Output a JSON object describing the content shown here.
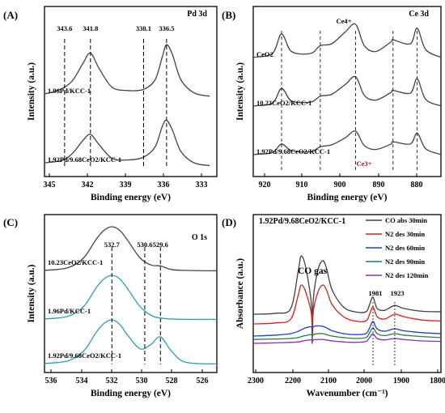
{
  "chart_data": [
    {
      "type": "line",
      "panel_label": "(A)",
      "title": "Pd 3d",
      "xlabel": "Binding energy (eV)",
      "ylabel": "Intensity (a.u.)",
      "xlim": [
        345,
        333
      ],
      "xticks": [
        "345",
        "342",
        "339",
        "336",
        "333"
      ],
      "peak_labels": [
        "343.6",
        "341.8",
        "338.1",
        "336.5"
      ],
      "series": [
        {
          "name": "1.96Pd/KCC-1",
          "x": [
            345,
            344.2,
            343.6,
            343,
            342.3,
            341.8,
            341.2,
            340.3,
            339.2,
            338.1,
            337.3,
            336.8,
            336.5,
            336.1,
            335.5,
            334.6,
            333.5
          ],
          "y": [
            0.1,
            0.15,
            0.22,
            0.35,
            0.65,
            0.82,
            0.55,
            0.22,
            0.16,
            0.18,
            0.35,
            0.75,
            0.97,
            0.8,
            0.35,
            0.12,
            0.06
          ]
        },
        {
          "name": "1.92Pd/9.68CeO2/KCC-1",
          "x": [
            345,
            344.2,
            343.6,
            343,
            342.3,
            341.8,
            341.2,
            340.3,
            339.2,
            338.1,
            337.3,
            336.8,
            336.5,
            336.1,
            335.5,
            334.6,
            333.5
          ],
          "y": [
            0.1,
            0.12,
            0.16,
            0.28,
            0.5,
            0.6,
            0.42,
            0.18,
            0.15,
            0.2,
            0.38,
            0.74,
            0.85,
            0.68,
            0.3,
            0.1,
            0.05
          ]
        }
      ]
    },
    {
      "type": "line",
      "panel_label": "(B)",
      "title": "Ce 3d",
      "xlabel": "Binding energy (eV)",
      "ylabel": "Intensity (a.u.)",
      "xlim": [
        925,
        876
      ],
      "xticks": [
        "920",
        "910",
        "900",
        "890",
        "880"
      ],
      "annotations": [
        "Ce4+",
        "Ce3+"
      ],
      "series": [
        {
          "name": "CeO2",
          "x": [
            925,
            920,
            917.6,
            915,
            910,
            907.5,
            904.5,
            901,
            898.3,
            896,
            893,
            889,
            888.5,
            884,
            882.2,
            880,
            876
          ],
          "y": [
            0.15,
            0.25,
            0.75,
            0.3,
            0.25,
            0.45,
            0.5,
            0.8,
            1.0,
            0.45,
            0.3,
            0.55,
            0.6,
            0.5,
            0.9,
            0.35,
            0.15
          ]
        },
        {
          "name": "10.23CeO2/KCC-1",
          "x": [
            925,
            920,
            917.6,
            915,
            910,
            907.5,
            904.5,
            901,
            898.3,
            896,
            893,
            889,
            888.5,
            884,
            882.2,
            880,
            876
          ],
          "y": [
            0.15,
            0.22,
            0.6,
            0.28,
            0.25,
            0.4,
            0.45,
            0.7,
            0.9,
            0.42,
            0.3,
            0.5,
            0.55,
            0.48,
            0.85,
            0.32,
            0.15
          ]
        },
        {
          "name": "1.92Pd/9.68CeO2/KCC-1",
          "x": [
            925,
            920,
            917.6,
            915,
            910,
            907.5,
            904.5,
            901,
            898.3,
            896,
            893,
            889,
            888.5,
            884,
            882.2,
            880,
            876
          ],
          "y": [
            0.15,
            0.2,
            0.42,
            0.25,
            0.22,
            0.35,
            0.4,
            0.58,
            0.75,
            0.38,
            0.28,
            0.42,
            0.48,
            0.42,
            0.7,
            0.3,
            0.15
          ]
        }
      ]
    },
    {
      "type": "line",
      "panel_label": "(C)",
      "title": "O 1s",
      "xlabel": "Binding energy (eV)",
      "ylabel": "Intensity (a.u.)",
      "xlim": [
        537,
        526
      ],
      "xticks": [
        "536",
        "534",
        "532",
        "530",
        "528",
        "526"
      ],
      "peak_labels": [
        "532.7",
        "530.6",
        "529.6"
      ],
      "series": [
        {
          "name": "10.23CeO2/KCC-1",
          "x": [
            537,
            535.5,
            534.5,
            533.7,
            533.2,
            532.7,
            532.2,
            531.7,
            530.9,
            530.2,
            529.6,
            528.9,
            528,
            526
          ],
          "y": [
            0.02,
            0.08,
            0.3,
            0.72,
            0.92,
            1.0,
            0.92,
            0.7,
            0.3,
            0.14,
            0.12,
            0.04,
            0.02,
            0.01
          ]
        },
        {
          "name": "1.96Pd/KCC-1",
          "x": [
            537,
            535.5,
            534.5,
            533.7,
            533.2,
            532.7,
            532.2,
            531.7,
            530.9,
            530.2,
            529.6,
            528.9,
            528,
            526
          ],
          "y": [
            0.02,
            0.08,
            0.3,
            0.72,
            0.92,
            1.0,
            0.92,
            0.7,
            0.3,
            0.1,
            0.04,
            0.02,
            0.01,
            0.01
          ]
        },
        {
          "name": "1.92Pd/9.68CeO2/KCC-1",
          "x": [
            537,
            535.5,
            534.5,
            533.7,
            533.2,
            532.7,
            532.2,
            531.7,
            530.9,
            530.2,
            529.6,
            528.9,
            528,
            526
          ],
          "y": [
            0.02,
            0.08,
            0.3,
            0.72,
            0.92,
            1.0,
            0.9,
            0.66,
            0.35,
            0.45,
            0.62,
            0.3,
            0.05,
            0.01
          ]
        }
      ]
    },
    {
      "type": "line",
      "panel_label": "(D)",
      "title": "1.92Pd/9.68CeO2/KCC-1",
      "xlabel": "Wavenumber (cm⁻¹)",
      "ylabel": "Absorbance (a.u.)",
      "xlim": [
        2300,
        1800
      ],
      "xticks": [
        "2300",
        "2200",
        "2100",
        "2000",
        "1900",
        "1800"
      ],
      "annotations": [
        "CO gas",
        "1981",
        "1923"
      ],
      "series": [
        {
          "name": "CO abs 30min",
          "color": "#404040",
          "x": [
            2300,
            2240,
            2200,
            2180,
            2172,
            2160,
            2145,
            2143,
            2140,
            2128,
            2115,
            2105,
            2090,
            2060,
            2030,
            2000,
            1990,
            1981,
            1970,
            1950,
            1923,
            1900,
            1850,
            1800
          ],
          "y": [
            1.0,
            1.02,
            1.12,
            1.9,
            2.2,
            1.95,
            1.2,
            0.4,
            1.3,
            1.9,
            2.1,
            1.95,
            1.5,
            1.15,
            1.05,
            1.05,
            1.2,
            1.35,
            1.12,
            1.08,
            1.18,
            1.12,
            1.06,
            1.05
          ]
        },
        {
          "name": "N2 des 30min",
          "color": "#d62020",
          "x": [
            2300,
            2240,
            2200,
            2180,
            2172,
            2160,
            2145,
            2143,
            2140,
            2128,
            2115,
            2105,
            2090,
            2060,
            2030,
            2000,
            1990,
            1981,
            1970,
            1950,
            1923,
            1900,
            1850,
            1800
          ],
          "y": [
            0.8,
            0.82,
            0.9,
            1.4,
            1.6,
            1.45,
            1.0,
            0.45,
            1.05,
            1.45,
            1.6,
            1.5,
            1.2,
            0.95,
            0.86,
            0.86,
            1.0,
            1.15,
            0.95,
            0.9,
            1.0,
            0.95,
            0.88,
            0.86
          ]
        },
        {
          "name": "N2 des 60min",
          "color": "#2040c0",
          "x": [
            2300,
            2240,
            2200,
            2180,
            2172,
            2160,
            2145,
            2143,
            2140,
            2128,
            2115,
            2105,
            2090,
            2060,
            2030,
            2000,
            1990,
            1981,
            1970,
            1950,
            1923,
            1900,
            1850,
            1800
          ],
          "y": [
            0.55,
            0.57,
            0.6,
            0.65,
            0.68,
            0.72,
            0.74,
            0.62,
            0.74,
            0.76,
            0.75,
            0.72,
            0.66,
            0.6,
            0.58,
            0.6,
            0.72,
            0.85,
            0.7,
            0.65,
            0.7,
            0.66,
            0.62,
            0.6
          ]
        },
        {
          "name": "N2 des 90min",
          "color": "#208040",
          "x": [
            2300,
            2240,
            2200,
            2180,
            2172,
            2160,
            2145,
            2143,
            2140,
            2128,
            2115,
            2105,
            2090,
            2060,
            2030,
            2000,
            1990,
            1981,
            1970,
            1950,
            1923,
            1900,
            1850,
            1800
          ],
          "y": [
            0.48,
            0.49,
            0.5,
            0.52,
            0.54,
            0.56,
            0.58,
            0.52,
            0.58,
            0.6,
            0.6,
            0.58,
            0.55,
            0.52,
            0.5,
            0.52,
            0.62,
            0.72,
            0.6,
            0.56,
            0.6,
            0.57,
            0.54,
            0.52
          ]
        },
        {
          "name": "N2 des 120min",
          "color": "#8030c0",
          "x": [
            2300,
            2240,
            2200,
            2180,
            2172,
            2160,
            2145,
            2143,
            2140,
            2128,
            2115,
            2105,
            2090,
            2060,
            2030,
            2000,
            1990,
            1981,
            1970,
            1950,
            1923,
            1900,
            1850,
            1800
          ],
          "y": [
            0.4,
            0.41,
            0.42,
            0.43,
            0.44,
            0.46,
            0.47,
            0.43,
            0.47,
            0.48,
            0.48,
            0.47,
            0.45,
            0.43,
            0.42,
            0.44,
            0.52,
            0.6,
            0.5,
            0.47,
            0.5,
            0.48,
            0.45,
            0.44
          ]
        }
      ]
    }
  ]
}
